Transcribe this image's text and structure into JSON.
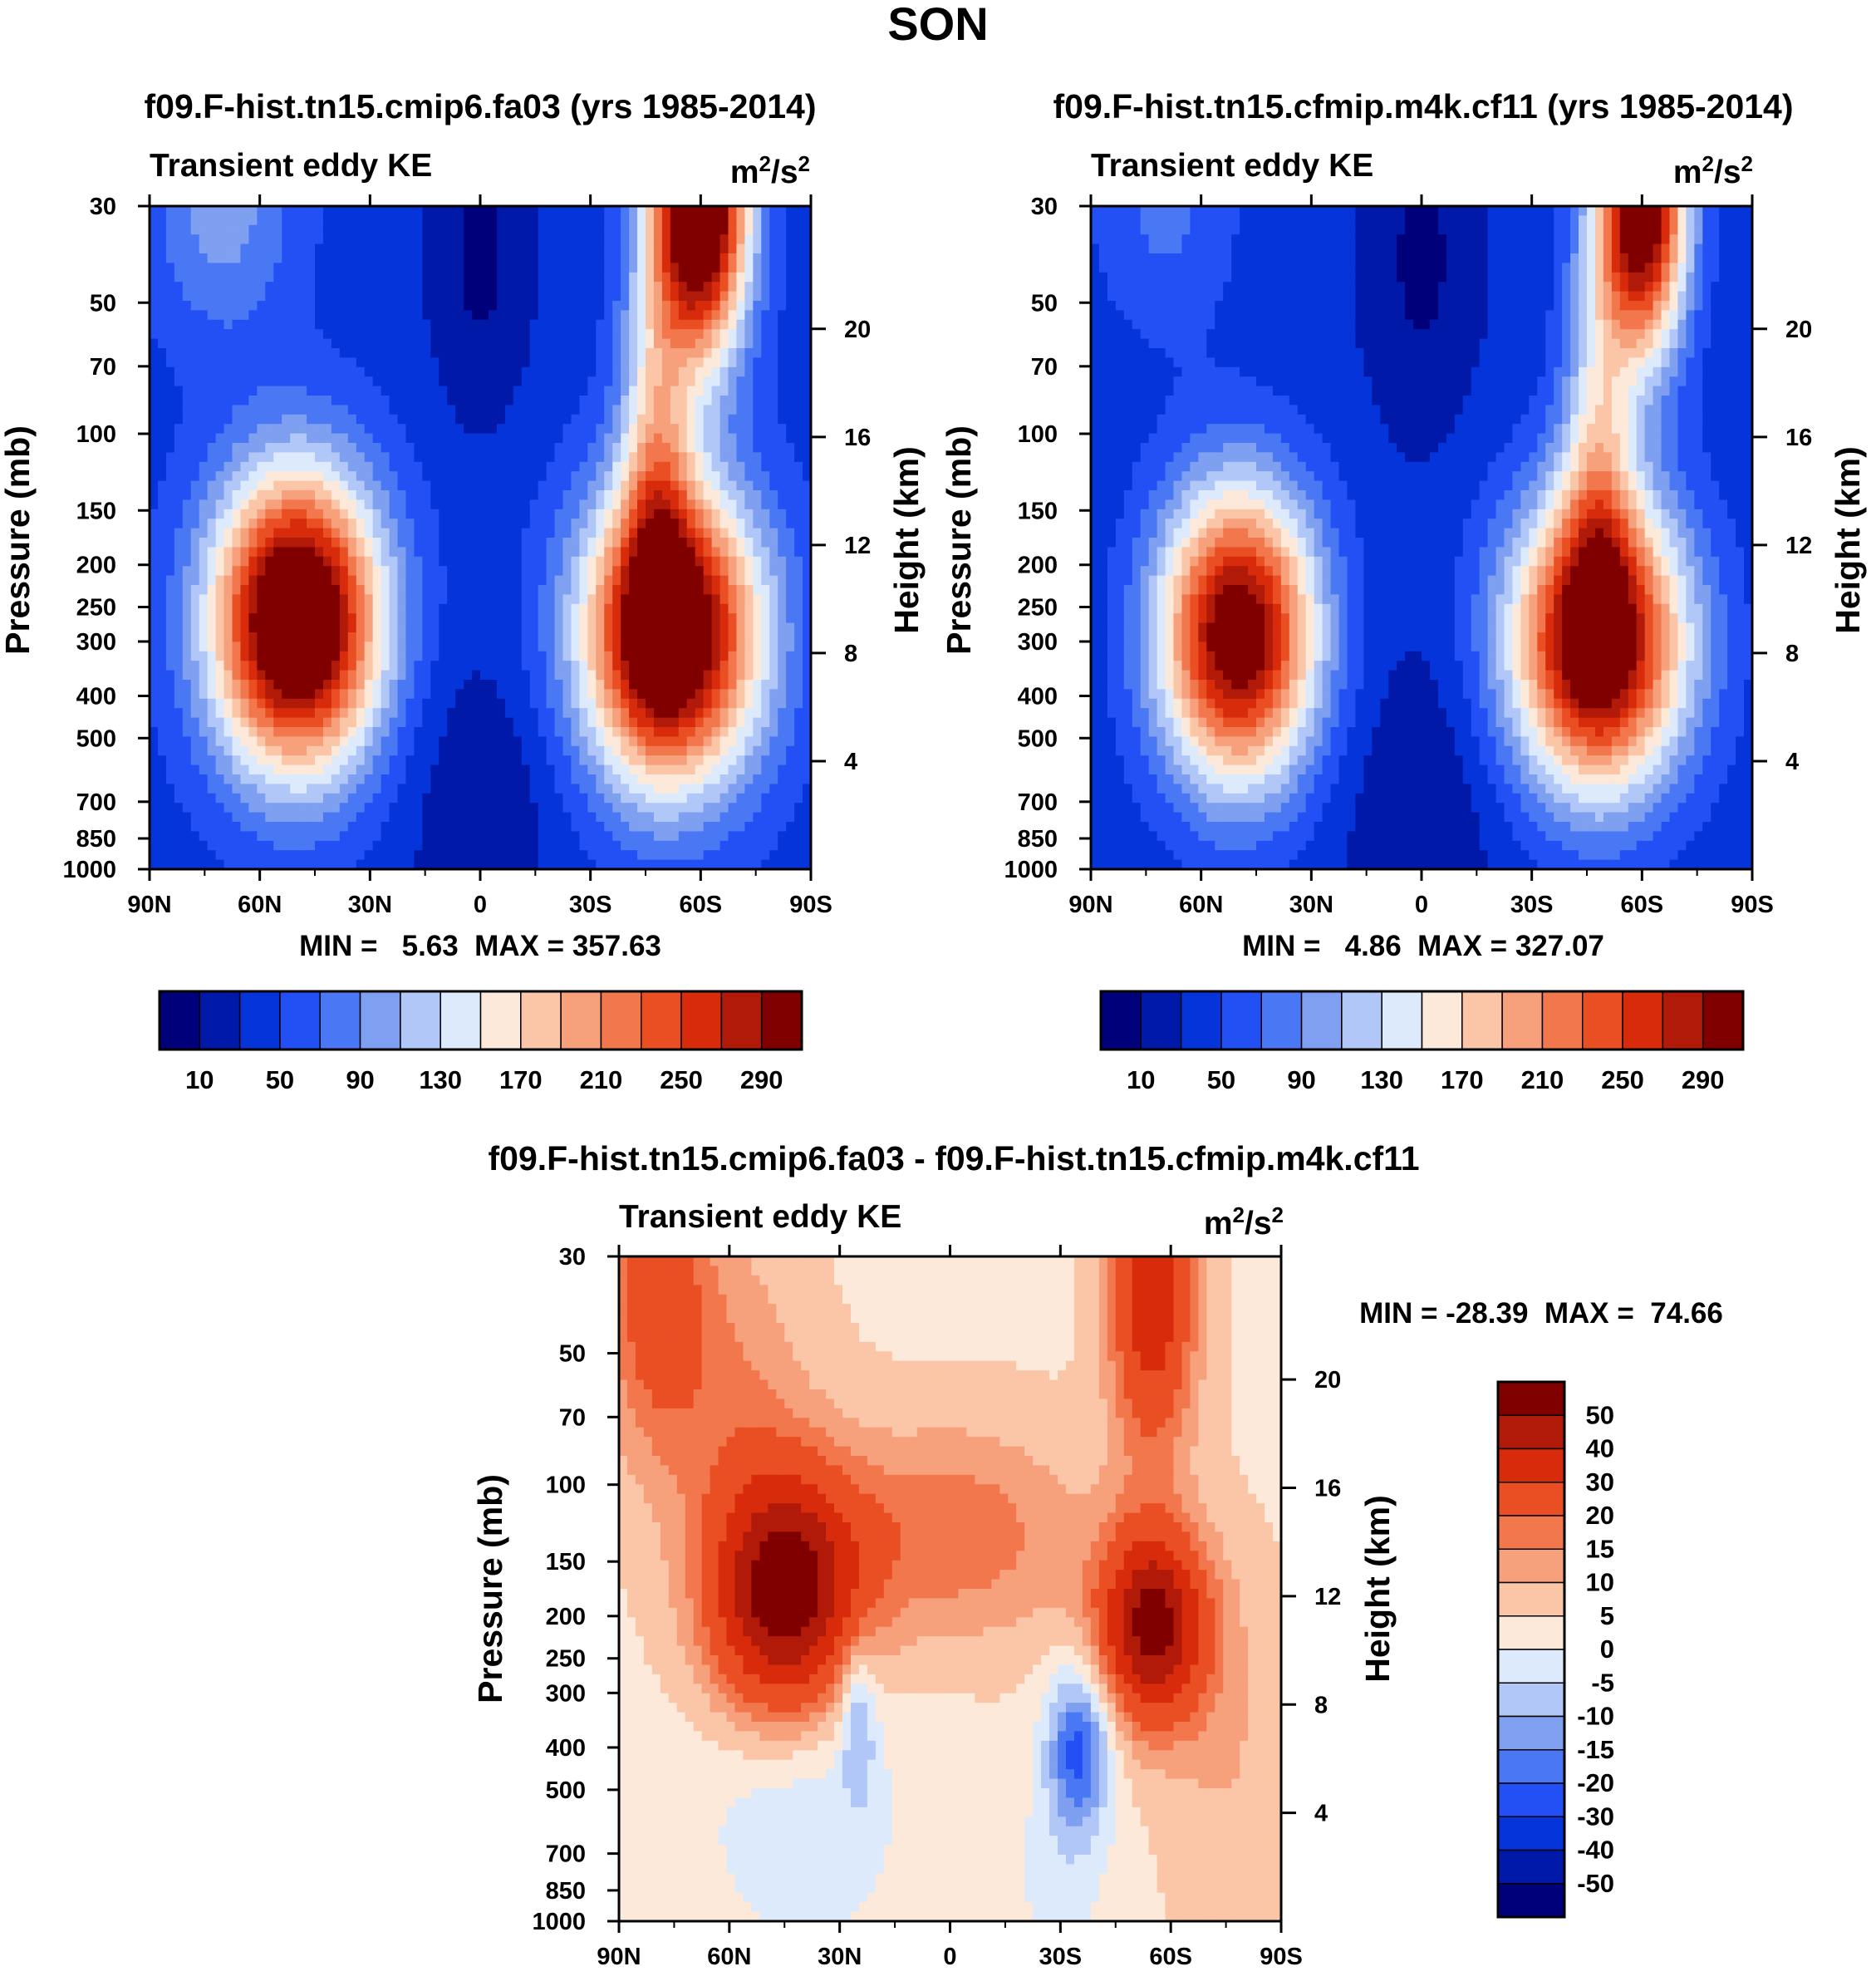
{
  "figure": {
    "title": "SON"
  },
  "colors": {
    "sequential": [
      "#00007a",
      "#0019a8",
      "#0634db",
      "#2250f5",
      "#4a78f5",
      "#7f9ff0",
      "#b0c7f7",
      "#dceafb",
      "#fce9d9",
      "#fbc5a7",
      "#f7a07c",
      "#f2774d",
      "#ea4f24",
      "#d72b0b",
      "#b11a08",
      "#800000"
    ],
    "diverging": [
      "#00007a",
      "#0019a8",
      "#0634db",
      "#2250f5",
      "#4a78f5",
      "#7f9ff0",
      "#b0c7f7",
      "#dceafb",
      "#fce9d9",
      "#fbc5a7",
      "#f7a07c",
      "#f2774d",
      "#ea4f24",
      "#d72b0b",
      "#b11a08",
      "#800000"
    ]
  },
  "chart_data": [
    {
      "type": "heatmap",
      "id": "panel1",
      "title": "f09.F-hist.tn15.cmip6.fa03 (yrs 1985-2014)",
      "left_label": "Transient eddy KE",
      "units_label": "m",
      "units_sup1": "2",
      "units_mid": "/s",
      "units_sup2": "2",
      "ylabel": "Pressure (mb)",
      "y2label": "Height (km)",
      "x_ticks": [
        "90N",
        "60N",
        "30N",
        "0",
        "30S",
        "60S",
        "90S"
      ],
      "y_ticks": [
        "30",
        "50",
        "70",
        "100",
        "150",
        "200",
        "250",
        "300",
        "400",
        "500",
        "700",
        "850",
        "1000"
      ],
      "y2_ticks": [
        "20",
        "16",
        "12",
        "8",
        "4"
      ],
      "stats": "MIN =   5.63  MAX = 357.63",
      "min": 5.63,
      "max": 357.63,
      "levels": [
        10,
        30,
        50,
        70,
        90,
        110,
        130,
        150,
        170,
        190,
        210,
        230,
        250,
        270,
        290
      ],
      "colorbar_labels": [
        "10",
        "50",
        "90",
        "130",
        "170",
        "210",
        "250",
        "290"
      ],
      "field": {
        "base": 40,
        "features": [
          {
            "lat": 50,
            "p": 270,
            "amp": 330,
            "sx": 16,
            "sy": 0.55
          },
          {
            "lat": -52,
            "p": 290,
            "amp": 310,
            "sx": 17,
            "sy": 0.55
          },
          {
            "lat": -60,
            "p": 30,
            "amp": 330,
            "sx": 9,
            "sy": 0.55
          },
          {
            "lat": -48,
            "p": 110,
            "amp": 110,
            "sx": 7,
            "sy": 0.8
          },
          {
            "lat": 0,
            "p": 40,
            "amp": -35,
            "sx": 10,
            "sy": 0.6
          },
          {
            "lat": 70,
            "p": 30,
            "amp": 60,
            "sx": 14,
            "sy": 0.5
          },
          {
            "lat": 0,
            "p": 700,
            "amp": -28,
            "sx": 15,
            "sy": 0.6
          }
        ]
      }
    },
    {
      "type": "heatmap",
      "id": "panel2",
      "title": "f09.F-hist.tn15.cfmip.m4k.cf11 (yrs 1985-2014)",
      "left_label": "Transient eddy KE",
      "units_label": "m",
      "units_sup1": "2",
      "units_mid": "/s",
      "units_sup2": "2",
      "ylabel": "Pressure (mb)",
      "y2label": "Height (km)",
      "x_ticks": [
        "90N",
        "60N",
        "30N",
        "0",
        "30S",
        "60S",
        "90S"
      ],
      "y_ticks": [
        "30",
        "50",
        "70",
        "100",
        "150",
        "200",
        "250",
        "300",
        "400",
        "500",
        "700",
        "850",
        "1000"
      ],
      "y2_ticks": [
        "20",
        "16",
        "12",
        "8",
        "4"
      ],
      "stats": "MIN =   4.86  MAX = 327.07",
      "min": 4.86,
      "max": 327.07,
      "levels": [
        10,
        30,
        50,
        70,
        90,
        110,
        130,
        150,
        170,
        190,
        210,
        230,
        250,
        270,
        290
      ],
      "colorbar_labels": [
        "10",
        "50",
        "90",
        "130",
        "170",
        "210",
        "250",
        "290"
      ],
      "field": {
        "base": 35,
        "features": [
          {
            "lat": 50,
            "p": 290,
            "amp": 290,
            "sx": 15,
            "sy": 0.55
          },
          {
            "lat": -48,
            "p": 300,
            "amp": 290,
            "sx": 17,
            "sy": 0.55
          },
          {
            "lat": -60,
            "p": 30,
            "amp": 300,
            "sx": 8.5,
            "sy": 0.55
          },
          {
            "lat": -48,
            "p": 110,
            "amp": 100,
            "sx": 7,
            "sy": 0.8
          },
          {
            "lat": 0,
            "p": 40,
            "amp": -30,
            "sx": 10,
            "sy": 0.6
          },
          {
            "lat": 70,
            "p": 30,
            "amp": 40,
            "sx": 14,
            "sy": 0.5
          },
          {
            "lat": 0,
            "p": 700,
            "amp": -25,
            "sx": 15,
            "sy": 0.6
          }
        ]
      }
    },
    {
      "type": "heatmap",
      "id": "panel3",
      "title": "f09.F-hist.tn15.cmip6.fa03 - f09.F-hist.tn15.cfmip.m4k.cf11",
      "left_label": "Transient eddy KE",
      "units_label": "m",
      "units_sup1": "2",
      "units_mid": "/s",
      "units_sup2": "2",
      "ylabel": "Pressure (mb)",
      "y2label": "Height (km)",
      "x_ticks": [
        "90N",
        "60N",
        "30N",
        "0",
        "30S",
        "60S",
        "90S"
      ],
      "y_ticks": [
        "30",
        "50",
        "70",
        "100",
        "150",
        "200",
        "250",
        "300",
        "400",
        "500",
        "700",
        "850",
        "1000"
      ],
      "y2_ticks": [
        "20",
        "16",
        "12",
        "8",
        "4"
      ],
      "stats": "MIN = -28.39  MAX =  74.66",
      "min": -28.39,
      "max": 74.66,
      "levels": [
        -50,
        -40,
        -30,
        -20,
        -15,
        -10,
        -5,
        0,
        5,
        10,
        15,
        20,
        30,
        40,
        50
      ],
      "colorbar_labels": [
        "50",
        "40",
        "30",
        "20",
        "15",
        "10",
        "5",
        "0",
        "-5",
        "-10",
        "-15",
        "-20",
        "-30",
        "-40",
        "-50"
      ],
      "field": {
        "base": 4,
        "features": [
          {
            "lat": 45,
            "p": 180,
            "amp": 55,
            "sx": 14,
            "sy": 0.45
          },
          {
            "lat": -55,
            "p": 210,
            "amp": 50,
            "sx": 10,
            "sy": 0.35
          },
          {
            "lat": -55,
            "p": 35,
            "amp": 35,
            "sx": 8,
            "sy": 0.6
          },
          {
            "lat": 0,
            "p": 130,
            "amp": 15,
            "sx": 25,
            "sy": 0.4
          },
          {
            "lat": 80,
            "p": 35,
            "amp": 20,
            "sx": 10,
            "sy": 0.6
          },
          {
            "lat": 60,
            "p": 60,
            "amp": 10,
            "sx": 15,
            "sy": 0.6
          },
          {
            "lat": -35,
            "p": 400,
            "amp": -26,
            "sx": 6,
            "sy": 0.3
          },
          {
            "lat": 25,
            "p": 330,
            "amp": -14,
            "sx": 3.5,
            "sy": 0.3
          },
          {
            "lat": 40,
            "p": 500,
            "amp": -9,
            "sx": 20,
            "sy": 0.6
          },
          {
            "lat": -30,
            "p": 800,
            "amp": -6,
            "sx": 10,
            "sy": 0.4
          },
          {
            "lat": -75,
            "p": 400,
            "amp": 6,
            "sx": 12,
            "sy": 0.7
          }
        ]
      }
    }
  ]
}
